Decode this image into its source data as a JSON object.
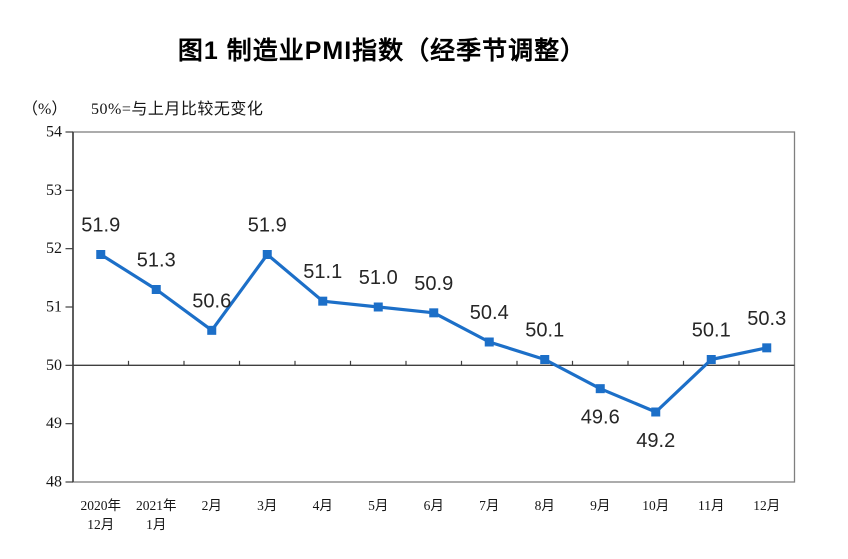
{
  "chart_data": {
    "type": "line",
    "title": "图1 制造业PMI指数（经季节调整）",
    "unit": "（%）",
    "annotation": "50%=与上月比较无变化",
    "categories": [
      "2020年12月",
      "2021年1月",
      "2月",
      "3月",
      "4月",
      "5月",
      "6月",
      "7月",
      "8月",
      "9月",
      "10月",
      "11月",
      "12月"
    ],
    "category_display": [
      [
        "2020年",
        "12月"
      ],
      [
        "2021年",
        "1月"
      ],
      [
        "2月"
      ],
      [
        "3月"
      ],
      [
        "4月"
      ],
      [
        "5月"
      ],
      [
        "6月"
      ],
      [
        "7月"
      ],
      [
        "8月"
      ],
      [
        "9月"
      ],
      [
        "10月"
      ],
      [
        "11月"
      ],
      [
        "12月"
      ]
    ],
    "values": [
      51.9,
      51.3,
      50.6,
      51.9,
      51.1,
      51.0,
      50.9,
      50.4,
      50.1,
      49.6,
      49.2,
      50.1,
      50.3
    ],
    "value_labels": [
      "51.9",
      "51.3",
      "50.6",
      "51.9",
      "51.1",
      "51.0",
      "50.9",
      "50.4",
      "50.1",
      "49.6",
      "49.2",
      "50.1",
      "50.3"
    ],
    "label_below_indices": [
      9,
      10
    ],
    "xlabel": "",
    "ylabel": "（%）",
    "ylim": [
      48,
      54
    ],
    "yticks": [
      48,
      49,
      50,
      51,
      52,
      53,
      54
    ],
    "reference_line_y": 50,
    "grid": false,
    "legend": "none",
    "marker": "square",
    "colors": {
      "line": "#1C6FC8",
      "marker": "#1C6FC8",
      "axis": "#3F3F3F",
      "plot_border": "#7F7F7F",
      "data_label": "#262626",
      "axis_label": "#151515"
    }
  }
}
